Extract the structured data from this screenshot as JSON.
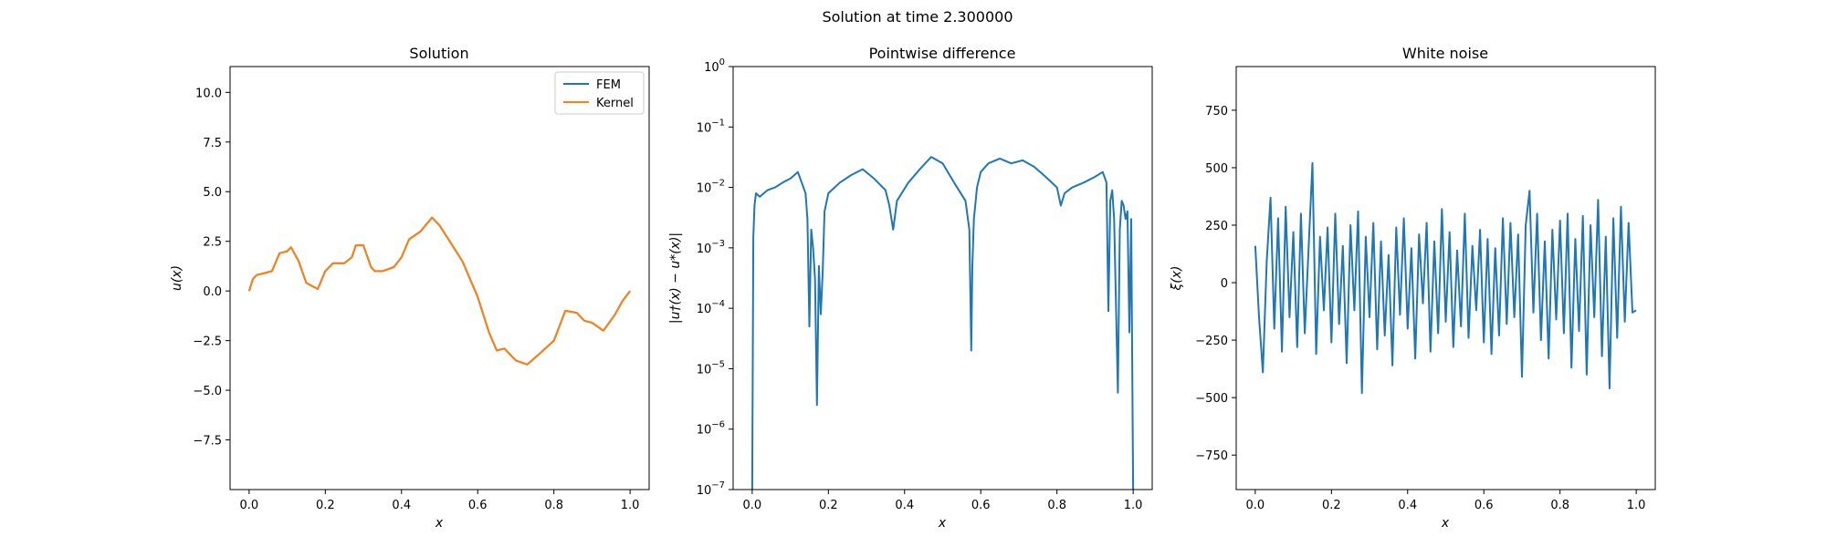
{
  "figure": {
    "suptitle": "Solution at time 2.300000"
  },
  "colors": {
    "fem": "#1f77b4",
    "kernel": "#ff7f0e",
    "axes": "#000000",
    "background": "#ffffff"
  },
  "chart_data": [
    {
      "type": "line",
      "title": "Solution",
      "xlabel": "x",
      "ylabel": "u(x)",
      "xlim": [
        -0.05,
        1.05
      ],
      "ylim": [
        -10.0,
        11.3
      ],
      "xticks": [
        0.0,
        0.2,
        0.4,
        0.6,
        0.8,
        1.0
      ],
      "xticklabels": [
        "0.0",
        "0.2",
        "0.4",
        "0.6",
        "0.8",
        "1.0"
      ],
      "yticks": [
        -7.5,
        -5.0,
        -2.5,
        0.0,
        2.5,
        5.0,
        7.5,
        10.0
      ],
      "yticklabels": [
        "−7.5",
        "−5.0",
        "−2.5",
        "0.0",
        "2.5",
        "5.0",
        "7.5",
        "10.0"
      ],
      "legend": {
        "placement": "top-right",
        "entries": [
          "FEM",
          "Kernel"
        ]
      },
      "grid": false,
      "series": [
        {
          "name": "FEM",
          "x": [
            0.0,
            0.01,
            0.02,
            0.04,
            0.06,
            0.08,
            0.1,
            0.11,
            0.13,
            0.15,
            0.17,
            0.18,
            0.2,
            0.22,
            0.25,
            0.27,
            0.28,
            0.3,
            0.32,
            0.33,
            0.35,
            0.38,
            0.4,
            0.42,
            0.45,
            0.48,
            0.5,
            0.53,
            0.56,
            0.6,
            0.63,
            0.65,
            0.67,
            0.7,
            0.73,
            0.76,
            0.8,
            0.83,
            0.86,
            0.88,
            0.9,
            0.93,
            0.96,
            0.98,
            1.0
          ],
          "y": [
            0.0,
            0.6,
            0.8,
            0.9,
            1.0,
            1.9,
            2.0,
            2.2,
            1.5,
            0.4,
            0.2,
            0.1,
            1.0,
            1.4,
            1.4,
            1.7,
            2.3,
            2.3,
            1.2,
            1.0,
            1.0,
            1.2,
            1.7,
            2.6,
            3.0,
            3.7,
            3.3,
            2.4,
            1.5,
            -0.3,
            -2.1,
            -3.0,
            -2.9,
            -3.5,
            -3.7,
            -3.2,
            -2.5,
            -1.0,
            -1.1,
            -1.5,
            -1.6,
            -2.0,
            -1.2,
            -0.5,
            0.0
          ]
        },
        {
          "name": "Kernel",
          "x": [
            0.0,
            0.01,
            0.02,
            0.04,
            0.06,
            0.08,
            0.1,
            0.11,
            0.13,
            0.15,
            0.17,
            0.18,
            0.2,
            0.22,
            0.25,
            0.27,
            0.28,
            0.3,
            0.32,
            0.33,
            0.35,
            0.38,
            0.4,
            0.42,
            0.45,
            0.48,
            0.5,
            0.53,
            0.56,
            0.6,
            0.63,
            0.65,
            0.67,
            0.7,
            0.73,
            0.76,
            0.8,
            0.83,
            0.86,
            0.88,
            0.9,
            0.93,
            0.96,
            0.98,
            1.0
          ],
          "y": [
            0.0,
            0.6,
            0.8,
            0.9,
            1.0,
            1.9,
            2.0,
            2.2,
            1.5,
            0.4,
            0.2,
            0.1,
            1.0,
            1.4,
            1.4,
            1.7,
            2.3,
            2.3,
            1.2,
            1.0,
            1.0,
            1.2,
            1.7,
            2.6,
            3.0,
            3.7,
            3.3,
            2.4,
            1.5,
            -0.3,
            -2.1,
            -3.0,
            -2.9,
            -3.5,
            -3.7,
            -3.2,
            -2.5,
            -1.0,
            -1.1,
            -1.5,
            -1.6,
            -2.0,
            -1.2,
            -0.5,
            0.0
          ]
        }
      ]
    },
    {
      "type": "line",
      "title": "Pointwise difference",
      "xlabel": "x",
      "ylabel": "|u†(x) − u*(x)|",
      "yscale": "log",
      "xlim": [
        -0.05,
        1.05
      ],
      "ylim": [
        1e-07,
        1.0
      ],
      "xticks": [
        0.0,
        0.2,
        0.4,
        0.6,
        0.8,
        1.0
      ],
      "xticklabels": [
        "0.0",
        "0.2",
        "0.4",
        "0.6",
        "0.8",
        "1.0"
      ],
      "yticks": [
        1e-07,
        1e-06,
        1e-05,
        0.0001,
        0.001,
        0.01,
        0.1,
        1.0
      ],
      "ytick_exponents": [
        "−7",
        "−6",
        "−5",
        "−4",
        "−3",
        "−2",
        "−1",
        "0"
      ],
      "grid": false,
      "series": [
        {
          "name": "",
          "x": [
            0.0,
            0.003,
            0.006,
            0.01,
            0.02,
            0.04,
            0.06,
            0.08,
            0.1,
            0.12,
            0.14,
            0.145,
            0.15,
            0.155,
            0.16,
            0.165,
            0.17,
            0.175,
            0.18,
            0.185,
            0.19,
            0.2,
            0.23,
            0.26,
            0.29,
            0.32,
            0.35,
            0.36,
            0.37,
            0.38,
            0.41,
            0.44,
            0.47,
            0.5,
            0.53,
            0.56,
            0.57,
            0.575,
            0.578,
            0.582,
            0.59,
            0.6,
            0.62,
            0.65,
            0.68,
            0.71,
            0.74,
            0.77,
            0.8,
            0.81,
            0.82,
            0.84,
            0.87,
            0.9,
            0.92,
            0.93,
            0.935,
            0.94,
            0.945,
            0.95,
            0.96,
            0.965,
            0.97,
            0.975,
            0.98,
            0.985,
            0.99,
            0.995,
            1.0
          ],
          "y": [
            1e-07,
            0.0015,
            0.005,
            0.008,
            0.007,
            0.009,
            0.01,
            0.012,
            0.014,
            0.018,
            0.008,
            0.003,
            5e-05,
            0.002,
            0.001,
            0.0003,
            2.5e-06,
            0.0005,
            8e-05,
            0.0004,
            0.004,
            0.008,
            0.012,
            0.016,
            0.02,
            0.014,
            0.009,
            0.005,
            0.002,
            0.006,
            0.012,
            0.02,
            0.032,
            0.025,
            0.012,
            0.006,
            0.002,
            2e-05,
            0.0005,
            0.003,
            0.01,
            0.018,
            0.025,
            0.03,
            0.025,
            0.028,
            0.022,
            0.015,
            0.01,
            0.005,
            0.008,
            0.01,
            0.012,
            0.015,
            0.018,
            0.012,
            9e-05,
            0.006,
            0.009,
            0.003,
            4e-06,
            0.002,
            0.006,
            0.005,
            0.003,
            0.004,
            4e-05,
            0.003,
            1e-07
          ]
        }
      ]
    },
    {
      "type": "line",
      "title": "White noise",
      "xlabel": "x",
      "ylabel": "ξ(x)",
      "xlim": [
        -0.05,
        1.05
      ],
      "ylim": [
        -900,
        940
      ],
      "xticks": [
        0.0,
        0.2,
        0.4,
        0.6,
        0.8,
        1.0
      ],
      "xticklabels": [
        "0.0",
        "0.2",
        "0.4",
        "0.6",
        "0.8",
        "1.0"
      ],
      "yticks": [
        -750,
        -500,
        -250,
        0,
        250,
        500,
        750
      ],
      "yticklabels": [
        "−750",
        "−500",
        "−250",
        "0",
        "250",
        "500",
        "750"
      ],
      "grid": false,
      "series": [
        {
          "name": "",
          "x": [
            0.0,
            0.01,
            0.02,
            0.03,
            0.04,
            0.05,
            0.06,
            0.07,
            0.08,
            0.09,
            0.1,
            0.11,
            0.12,
            0.13,
            0.14,
            0.15,
            0.16,
            0.17,
            0.18,
            0.19,
            0.2,
            0.21,
            0.22,
            0.23,
            0.24,
            0.25,
            0.26,
            0.27,
            0.28,
            0.29,
            0.3,
            0.31,
            0.32,
            0.33,
            0.34,
            0.35,
            0.36,
            0.37,
            0.38,
            0.39,
            0.4,
            0.41,
            0.42,
            0.43,
            0.44,
            0.45,
            0.46,
            0.47,
            0.48,
            0.49,
            0.5,
            0.51,
            0.52,
            0.53,
            0.54,
            0.55,
            0.56,
            0.57,
            0.58,
            0.59,
            0.6,
            0.61,
            0.62,
            0.63,
            0.64,
            0.65,
            0.66,
            0.67,
            0.68,
            0.69,
            0.7,
            0.71,
            0.72,
            0.73,
            0.74,
            0.75,
            0.76,
            0.77,
            0.78,
            0.79,
            0.8,
            0.81,
            0.82,
            0.83,
            0.84,
            0.85,
            0.86,
            0.87,
            0.88,
            0.89,
            0.9,
            0.91,
            0.92,
            0.93,
            0.94,
            0.95,
            0.96,
            0.97,
            0.98,
            0.99,
            1.0
          ],
          "y": [
            160,
            -150,
            -390,
            90,
            370,
            -200,
            280,
            -300,
            330,
            -150,
            220,
            -280,
            300,
            -220,
            150,
            520,
            -310,
            200,
            -120,
            240,
            -260,
            300,
            -180,
            160,
            -350,
            250,
            -120,
            310,
            -480,
            200,
            -150,
            260,
            -290,
            180,
            -230,
            120,
            -360,
            240,
            -140,
            280,
            -200,
            150,
            -330,
            210,
            -90,
            260,
            -300,
            180,
            -220,
            320,
            -170,
            220,
            -280,
            140,
            -190,
            300,
            -240,
            160,
            -120,
            230,
            -260,
            190,
            -310,
            150,
            -230,
            280,
            -180,
            260,
            -150,
            210,
            -410,
            250,
            400,
            -130,
            300,
            -250,
            180,
            -330,
            230,
            -160,
            270,
            -220,
            300,
            -370,
            190,
            -210,
            290,
            -400,
            250,
            -150,
            360,
            -320,
            200,
            -460,
            280,
            -240,
            330,
            -170,
            260,
            -130,
            -120
          ]
        }
      ]
    }
  ]
}
